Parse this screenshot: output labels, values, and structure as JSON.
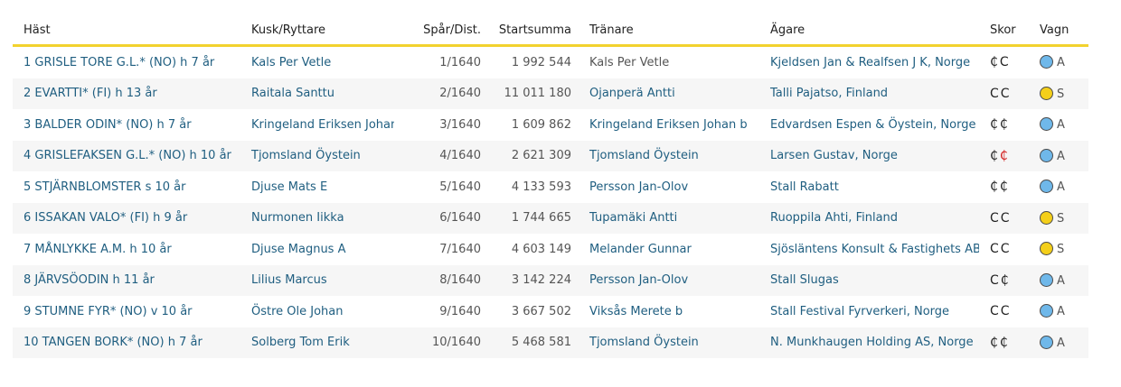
{
  "headers": {
    "horse": "Häst",
    "driver": "Kusk/Ryttare",
    "track": "Spår/Dist.",
    "earnings": "Startsumma",
    "trainer": "Tränare",
    "owner": "Ägare",
    "shoes": "Skor",
    "cart": "Vagn"
  },
  "colors": {
    "link": "#1f5e80",
    "header_rule": "#f2d22e",
    "cart_A": "#6fb8ea",
    "cart_S": "#f4cf1a",
    "shoe_red": "#d11a1a"
  },
  "rows": [
    {
      "horse": "1 GRISLE TORE G.L.* (NO) h 7 år",
      "driver": "Kals Per Vetle",
      "track": "1/1640",
      "earnings": "1 992 544",
      "trainer": "Kals Per Vetle",
      "trainer_link": false,
      "owner": "Kjeldsen Jan & Realfsen J K, Norge",
      "shoe_front": "₵",
      "shoe_front_red": false,
      "shoe_back": "C",
      "shoe_back_red": false,
      "cart": "A"
    },
    {
      "horse": "2 EVARTTI* (FI) h 13 år",
      "driver": "Raitala Santtu",
      "track": "2/1640",
      "earnings": "11 011 180",
      "trainer": "Ojanperä Antti",
      "trainer_link": true,
      "owner": "Talli Pajatso, Finland",
      "shoe_front": "C",
      "shoe_front_red": false,
      "shoe_back": "C",
      "shoe_back_red": false,
      "cart": "S"
    },
    {
      "horse": "3 BALDER ODIN* (NO) h 7 år",
      "driver": "Kringeland Eriksen Johan",
      "track": "3/1640",
      "earnings": "1 609 862",
      "trainer": "Kringeland Eriksen Johan b",
      "trainer_link": true,
      "owner": "Edvardsen Espen & Öystein, Norge",
      "shoe_front": "₵",
      "shoe_front_red": false,
      "shoe_back": "₵",
      "shoe_back_red": false,
      "cart": "A"
    },
    {
      "horse": "4 GRISLEFAKSEN G.L.* (NO) h 10 år",
      "driver": "Tjomsland Öystein",
      "track": "4/1640",
      "earnings": "2 621 309",
      "trainer": "Tjomsland Öystein",
      "trainer_link": true,
      "owner": "Larsen Gustav, Norge",
      "shoe_front": "₵",
      "shoe_front_red": false,
      "shoe_back": "₵",
      "shoe_back_red": true,
      "cart": "A"
    },
    {
      "horse": "5 STJÄRNBLOMSTER s 10 år",
      "driver": "Djuse Mats E",
      "track": "5/1640",
      "earnings": "4 133 593",
      "trainer": "Persson Jan-Olov",
      "trainer_link": true,
      "owner": "Stall Rabatt",
      "shoe_front": "₵",
      "shoe_front_red": false,
      "shoe_back": "₵",
      "shoe_back_red": false,
      "cart": "A"
    },
    {
      "horse": "6 ISSAKAN VALO* (FI) h 9 år",
      "driver": "Nurmonen Iikka",
      "track": "6/1640",
      "earnings": "1 744 665",
      "trainer": "Tupamäki Antti",
      "trainer_link": true,
      "owner": "Ruoppila Ahti, Finland",
      "shoe_front": "C",
      "shoe_front_red": false,
      "shoe_back": "C",
      "shoe_back_red": false,
      "cart": "S"
    },
    {
      "horse": "7 MÅNLYKKE A.M. h 10 år",
      "driver": "Djuse Magnus A",
      "track": "7/1640",
      "earnings": "4 603 149",
      "trainer": "Melander Gunnar",
      "trainer_link": true,
      "owner": "Sjösläntens Konsult & Fastighets AB",
      "shoe_front": "C",
      "shoe_front_red": false,
      "shoe_back": "C",
      "shoe_back_red": false,
      "cart": "S"
    },
    {
      "horse": "8 JÄRVSÖODIN h 11 år",
      "driver": "Lilius Marcus",
      "track": "8/1640",
      "earnings": "3 142 224",
      "trainer": "Persson Jan-Olov",
      "trainer_link": true,
      "owner": "Stall Slugas",
      "shoe_front": "C",
      "shoe_front_red": false,
      "shoe_back": "₵",
      "shoe_back_red": false,
      "cart": "A"
    },
    {
      "horse": "9 STUMNE FYR* (NO) v 10 år",
      "driver": "Östre Ole Johan",
      "track": "9/1640",
      "earnings": "3 667 502",
      "trainer": "Viksås Merete b",
      "trainer_link": true,
      "owner": "Stall Festival Fyrverkeri, Norge",
      "shoe_front": "C",
      "shoe_front_red": false,
      "shoe_back": "C",
      "shoe_back_red": false,
      "cart": "A"
    },
    {
      "horse": "10 TANGEN BORK* (NO) h 7 år",
      "driver": "Solberg Tom Erik",
      "track": "10/1640",
      "earnings": "5 468 581",
      "trainer": "Tjomsland Öystein",
      "trainer_link": true,
      "owner": "N. Munkhaugen Holding AS, Norge",
      "shoe_front": "₵",
      "shoe_front_red": false,
      "shoe_back": "₵",
      "shoe_back_red": false,
      "cart": "A"
    }
  ]
}
